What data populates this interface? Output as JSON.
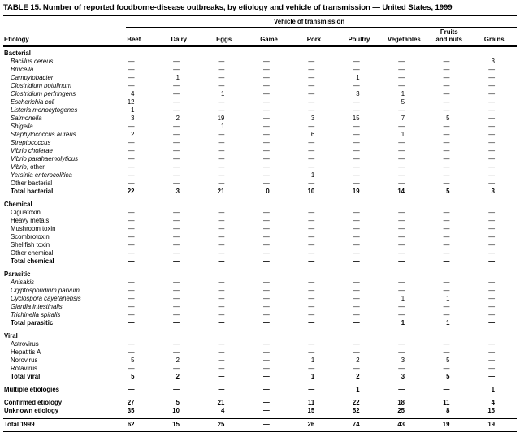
{
  "title": "TABLE 15. Number of reported foodborne-disease outbreaks, by etiology and vehicle of transmission — United States, 1999",
  "table": {
    "group_header": "Vehicle of transmission",
    "etiology_header": "Etiology",
    "columns": [
      "Beef",
      "Dairy",
      "Eggs",
      "Game",
      "Pork",
      "Poultry",
      "Vegetables",
      "Fruits\nand nuts",
      "Grains"
    ],
    "sections": [
      {
        "name": "Bacterial",
        "rows": [
          {
            "label": "Bacillus cereus",
            "italic": true,
            "values": [
              "—",
              "—",
              "—",
              "—",
              "—",
              "—",
              "—",
              "—",
              "3"
            ]
          },
          {
            "label": "Brucella",
            "italic": true,
            "values": [
              "—",
              "—",
              "—",
              "—",
              "—",
              "—",
              "—",
              "—",
              "—"
            ]
          },
          {
            "label": "Campylobacter",
            "italic": true,
            "values": [
              "—",
              "1",
              "—",
              "—",
              "—",
              "1",
              "—",
              "—",
              "—"
            ]
          },
          {
            "label": "Clostridium botulinum",
            "italic": true,
            "values": [
              "—",
              "—",
              "—",
              "—",
              "—",
              "—",
              "—",
              "—",
              "—"
            ]
          },
          {
            "label": "Clostridium perfringens",
            "italic": true,
            "values": [
              "4",
              "—",
              "1",
              "—",
              "—",
              "3",
              "1",
              "—",
              "—"
            ]
          },
          {
            "label": "Escherichia coli",
            "italic": true,
            "values": [
              "12",
              "—",
              "—",
              "—",
              "—",
              "—",
              "5",
              "—",
              "—"
            ]
          },
          {
            "label": "Listeria monocytogenes",
            "italic": true,
            "values": [
              "1",
              "—",
              "—",
              "—",
              "—",
              "—",
              "—",
              "—",
              "—"
            ]
          },
          {
            "label": "Salmonella",
            "italic": true,
            "values": [
              "3",
              "2",
              "19",
              "—",
              "3",
              "15",
              "7",
              "5",
              "—"
            ]
          },
          {
            "label": "Shigella",
            "italic": true,
            "values": [
              "—",
              "—",
              "1",
              "—",
              "—",
              "—",
              "—",
              "—",
              "—"
            ]
          },
          {
            "label": "Staphylococcus aureus",
            "italic": true,
            "values": [
              "2",
              "—",
              "—",
              "—",
              "6",
              "—",
              "1",
              "—",
              "—"
            ]
          },
          {
            "label": "Streptococcus",
            "italic": true,
            "values": [
              "—",
              "—",
              "—",
              "—",
              "—",
              "—",
              "—",
              "—",
              "—"
            ]
          },
          {
            "label": "Vibrio cholerae",
            "italic": true,
            "values": [
              "—",
              "—",
              "—",
              "—",
              "—",
              "—",
              "—",
              "—",
              "—"
            ]
          },
          {
            "label": "Vibrio parahaemolyticus",
            "italic": true,
            "values": [
              "—",
              "—",
              "—",
              "—",
              "—",
              "—",
              "—",
              "—",
              "—"
            ]
          },
          {
            "label": "Vibrio",
            "suffix": ", other",
            "italic": true,
            "values": [
              "—",
              "—",
              "—",
              "—",
              "—",
              "—",
              "—",
              "—",
              "—"
            ]
          },
          {
            "label": "Yersinia enterocolitica",
            "italic": true,
            "values": [
              "—",
              "—",
              "—",
              "—",
              "1",
              "—",
              "—",
              "—",
              "—"
            ]
          },
          {
            "label": "Other bacterial",
            "italic": false,
            "values": [
              "—",
              "—",
              "—",
              "—",
              "—",
              "—",
              "—",
              "—",
              "—"
            ]
          },
          {
            "label": "Total bacterial",
            "bold": true,
            "values": [
              "22",
              "3",
              "21",
              "0",
              "10",
              "19",
              "14",
              "5",
              "3"
            ]
          }
        ]
      },
      {
        "name": "Chemical",
        "rows": [
          {
            "label": "Ciguatoxin",
            "values": [
              "—",
              "—",
              "—",
              "—",
              "—",
              "—",
              "—",
              "—",
              "—"
            ]
          },
          {
            "label": "Heavy metals",
            "values": [
              "—",
              "—",
              "—",
              "—",
              "—",
              "—",
              "—",
              "—",
              "—"
            ]
          },
          {
            "label": "Mushroom toxin",
            "values": [
              "—",
              "—",
              "—",
              "—",
              "—",
              "—",
              "—",
              "—",
              "—"
            ]
          },
          {
            "label": "Scombrotoxin",
            "values": [
              "—",
              "—",
              "—",
              "—",
              "—",
              "—",
              "—",
              "—",
              "—"
            ]
          },
          {
            "label": "Shellfish toxin",
            "values": [
              "—",
              "—",
              "—",
              "—",
              "—",
              "—",
              "—",
              "—",
              "—"
            ]
          },
          {
            "label": "Other chemical",
            "values": [
              "—",
              "—",
              "—",
              "—",
              "—",
              "—",
              "—",
              "—",
              "—"
            ]
          },
          {
            "label": "Total chemical",
            "bold": true,
            "values": [
              "—",
              "—",
              "—",
              "—",
              "—",
              "—",
              "—",
              "—",
              "—"
            ]
          }
        ]
      },
      {
        "name": "Parasitic",
        "rows": [
          {
            "label": "Anisakis",
            "italic": true,
            "values": [
              "—",
              "—",
              "—",
              "—",
              "—",
              "—",
              "—",
              "—",
              "—"
            ]
          },
          {
            "label": "Cryptosporidium parvum",
            "italic": true,
            "values": [
              "—",
              "—",
              "—",
              "—",
              "—",
              "—",
              "—",
              "—",
              "—"
            ]
          },
          {
            "label": "Cyclospora cayetanensis",
            "italic": true,
            "values": [
              "—",
              "—",
              "—",
              "—",
              "—",
              "—",
              "1",
              "1",
              "—"
            ]
          },
          {
            "label": "Giardia intestinalis",
            "italic": true,
            "values": [
              "—",
              "—",
              "—",
              "—",
              "—",
              "—",
              "—",
              "—",
              "—"
            ]
          },
          {
            "label": "Trichinella spiralis",
            "italic": true,
            "values": [
              "—",
              "—",
              "—",
              "—",
              "—",
              "—",
              "—",
              "—",
              "—"
            ]
          },
          {
            "label": "Total parasitic",
            "bold": true,
            "values": [
              "—",
              "—",
              "—",
              "—",
              "—",
              "—",
              "1",
              "1",
              "—"
            ]
          }
        ]
      },
      {
        "name": "Viral",
        "rows": [
          {
            "label": "Astrovirus",
            "values": [
              "—",
              "—",
              "—",
              "—",
              "—",
              "—",
              "—",
              "—",
              "—"
            ]
          },
          {
            "label": "Hepatitis A",
            "values": [
              "—",
              "—",
              "—",
              "—",
              "—",
              "—",
              "—",
              "—",
              "—"
            ]
          },
          {
            "label": "Norovirus",
            "values": [
              "5",
              "2",
              "—",
              "—",
              "1",
              "2",
              "3",
              "5",
              "—"
            ]
          },
          {
            "label": "Rotavirus",
            "values": [
              "—",
              "—",
              "—",
              "—",
              "—",
              "—",
              "—",
              "—",
              "—"
            ]
          },
          {
            "label": "Total viral",
            "bold": true,
            "values": [
              "5",
              "2",
              "—",
              "—",
              "1",
              "2",
              "3",
              "5",
              "—"
            ]
          }
        ]
      }
    ],
    "footer_rows": [
      {
        "label": "Multiple etiologies",
        "bold": true,
        "gap_before": true,
        "values": [
          "—",
          "—",
          "—",
          "—",
          "—",
          "1",
          "—",
          "—",
          "1"
        ]
      },
      {
        "label": "Confirmed etiology",
        "bold": true,
        "gap_before": true,
        "values": [
          "27",
          "5",
          "21",
          "—",
          "11",
          "22",
          "18",
          "11",
          "4"
        ]
      },
      {
        "label": "Unknown etiology",
        "bold": true,
        "values": [
          "35",
          "10",
          "4",
          "—",
          "15",
          "52",
          "25",
          "8",
          "15"
        ]
      },
      {
        "label": "Total 1999",
        "bold": true,
        "gap_before": true,
        "ruled": true,
        "values": [
          "62",
          "15",
          "25",
          "—",
          "26",
          "74",
          "43",
          "19",
          "19"
        ]
      }
    ]
  }
}
